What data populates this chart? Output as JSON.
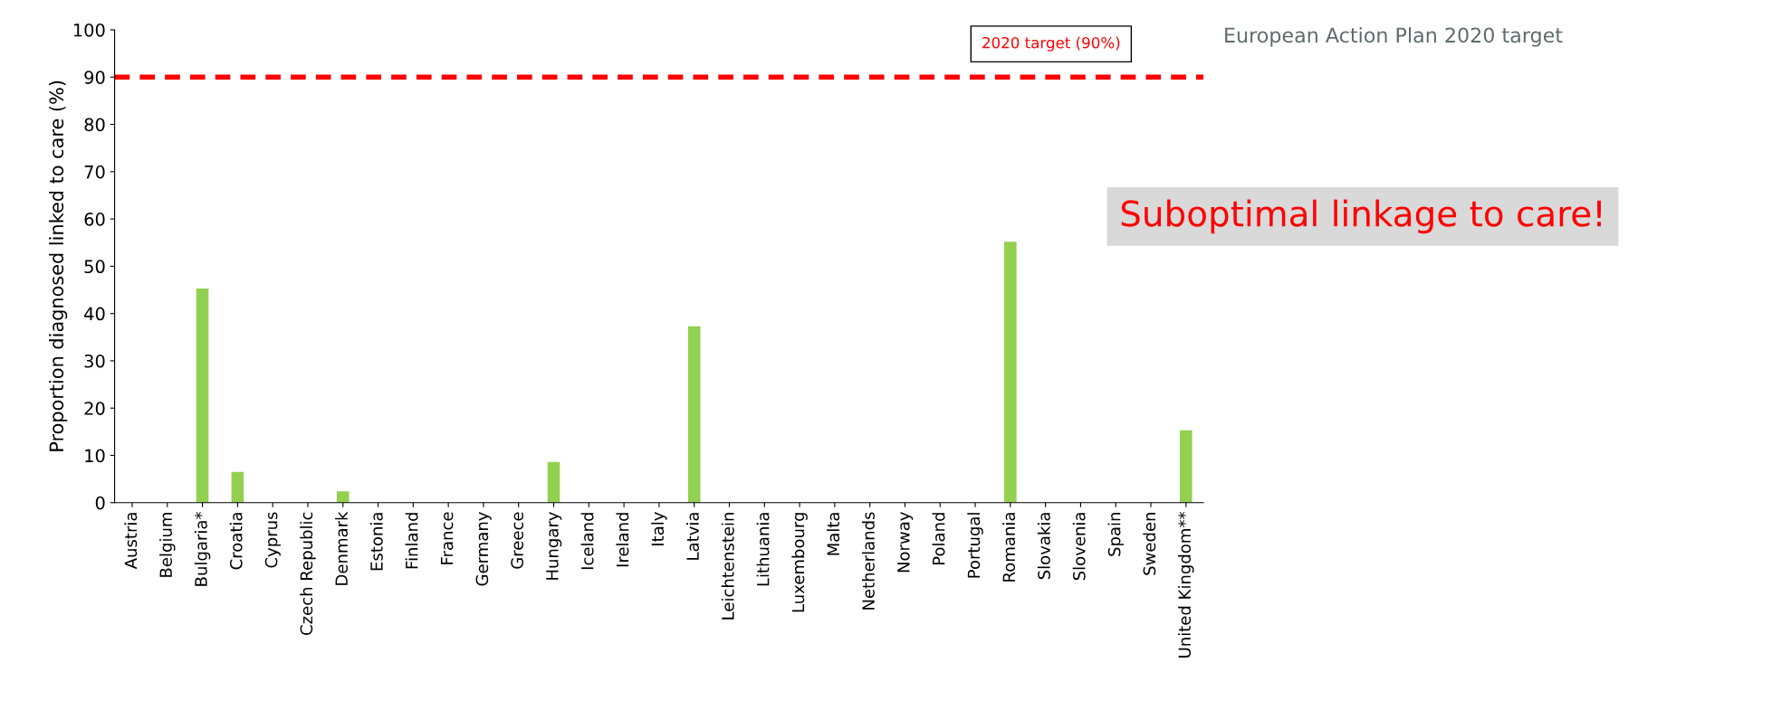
{
  "chart_data": {
    "type": "bar",
    "ylabel": "Proportion diagnosed linked to care (%)",
    "categories": [
      "Austria",
      "Belgium",
      "Bulgaria*",
      "Croatia",
      "Cyprus",
      "Czech Republic",
      "Denmark",
      "Estonia",
      "Finland",
      "France",
      "Germany",
      "Greece",
      "Hungary",
      "Iceland",
      "Ireland",
      "Italy",
      "Latvia",
      "Leichtenstein",
      "Lithuania",
      "Luxembourg",
      "Malta",
      "Netherlands",
      "Norway",
      "Poland",
      "Portugal",
      "Romania",
      "Slovakia",
      "Slovenia",
      "Spain",
      "Sweden",
      "United Kingdom**"
    ],
    "values": [
      null,
      null,
      45.3,
      6.5,
      null,
      null,
      2.4,
      null,
      null,
      null,
      null,
      null,
      8.6,
      null,
      null,
      null,
      37.3,
      null,
      null,
      null,
      null,
      null,
      null,
      null,
      null,
      55.2,
      null,
      null,
      null,
      null,
      15.3
    ],
    "color": "#92d050",
    "ylim": [
      0,
      100
    ],
    "yticks": [
      0,
      10,
      20,
      30,
      40,
      50,
      60,
      70,
      80,
      90,
      100
    ],
    "grid": false,
    "legend": false,
    "ref_lines": [
      {
        "axis": "y",
        "value": 90,
        "label": "2020 target (90%)",
        "color": "#ff0000",
        "line_style": "dashed"
      }
    ],
    "annotations": [
      "European Action Plan 2020 target",
      "Suboptimal linkage to care!"
    ]
  }
}
